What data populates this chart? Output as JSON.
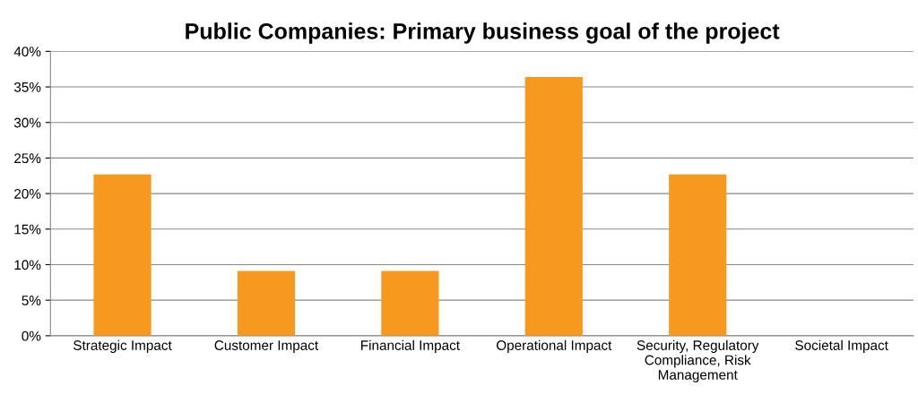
{
  "chart_data": {
    "type": "bar",
    "title": "Public Companies: Primary business goal of the project",
    "categories": [
      "Strategic Impact",
      "Customer Impact",
      "Financial Impact",
      "Operational Impact",
      "Security, Regulatory\nCompliance, Risk\nManagement",
      "Societal Impact"
    ],
    "values": [
      22.7,
      9.1,
      9.1,
      36.4,
      22.7,
      0
    ],
    "color": "#f7991e",
    "ylim": [
      0,
      40
    ],
    "yticks": [
      {
        "value": 0,
        "label": "0%"
      },
      {
        "value": 5,
        "label": "5%"
      },
      {
        "value": 10,
        "label": "10%"
      },
      {
        "value": 15,
        "label": "15%"
      },
      {
        "value": 20,
        "label": "20%"
      },
      {
        "value": 25,
        "label": "25%"
      },
      {
        "value": 30,
        "label": "30%"
      },
      {
        "value": 35,
        "label": "35%"
      },
      {
        "value": 40,
        "label": "40%"
      }
    ],
    "grid": "y",
    "legend": false
  }
}
